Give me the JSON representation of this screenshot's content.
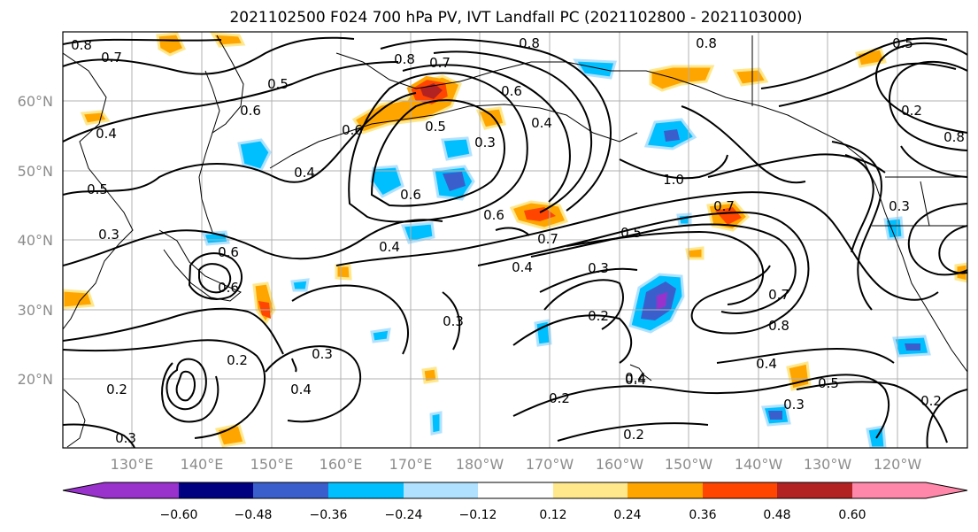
{
  "title": "2021102500 F024 700 hPa PV, IVT Landfall PC (2021102800 - 2021103000)",
  "lat_labels": [
    "60°N",
    "50°N",
    "40°N",
    "30°N",
    "20°N"
  ],
  "lon_labels": [
    "130°E",
    "140°E",
    "150°E",
    "160°E",
    "170°E",
    "180°W",
    "170°W",
    "160°W",
    "150°W",
    "140°W",
    "130°W",
    "120°W"
  ],
  "colorbar": {
    "ticks": [
      "−0.60",
      "−0.48",
      "−0.36",
      "−0.24",
      "−0.12",
      "0.12",
      "0.24",
      "0.36",
      "0.48",
      "0.60"
    ],
    "colors": [
      "#9932cc",
      "#000080",
      "#3a5fcd",
      "#00bfff",
      "#b0e2ff",
      "#ffffff",
      "#ffe78c",
      "#ffa500",
      "#ff4500",
      "#b22222",
      "#ff88aa"
    ]
  },
  "contour_labels": [
    "0.8",
    "0.7",
    "0.5",
    "0.6",
    "0.4",
    "0.8",
    "0.7",
    "0.6",
    "0.4",
    "0.5",
    "0.3",
    "0.8",
    "0.8",
    "0.5",
    "0.6",
    "0.4",
    "0.5",
    "0.4",
    "0.6",
    "0.6",
    "0.7",
    "1.0",
    "0.7",
    "0.5",
    "0.4",
    "0.3",
    "0.3",
    "0.2",
    "0.4",
    "0.7",
    "0.8",
    "0.4",
    "0.5",
    "0.3",
    "0.2",
    "0.2",
    "0.4",
    "0.3",
    "0.2",
    "0.3",
    "0.2",
    "0.3",
    "0.2",
    "0.6",
    "0.4",
    "0.3",
    "0.8",
    "0.2",
    "0.6"
  ]
}
